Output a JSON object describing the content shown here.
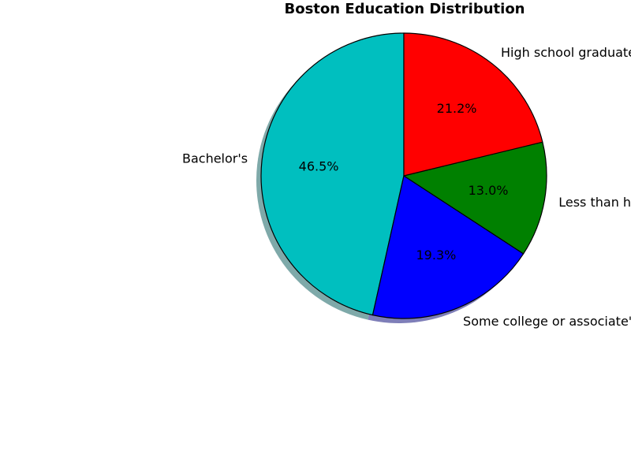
{
  "chart_data": {
    "type": "pie",
    "title": "Boston Education Distribution",
    "categories": [
      "Bachelor's",
      "Some college or associate's degree",
      "Less than high school graduate",
      "High school graduate"
    ],
    "values": [
      46.5,
      19.3,
      13.0,
      21.2
    ],
    "value_labels": [
      "46.5%",
      "19.3%",
      "13.0%",
      "21.2%"
    ],
    "colors": [
      "#00bfbf",
      "#0000ff",
      "#008000",
      "#ff0000"
    ],
    "start_angle_deg": 90,
    "direction": "counterclockwise",
    "shadow": true,
    "legend": "none"
  }
}
